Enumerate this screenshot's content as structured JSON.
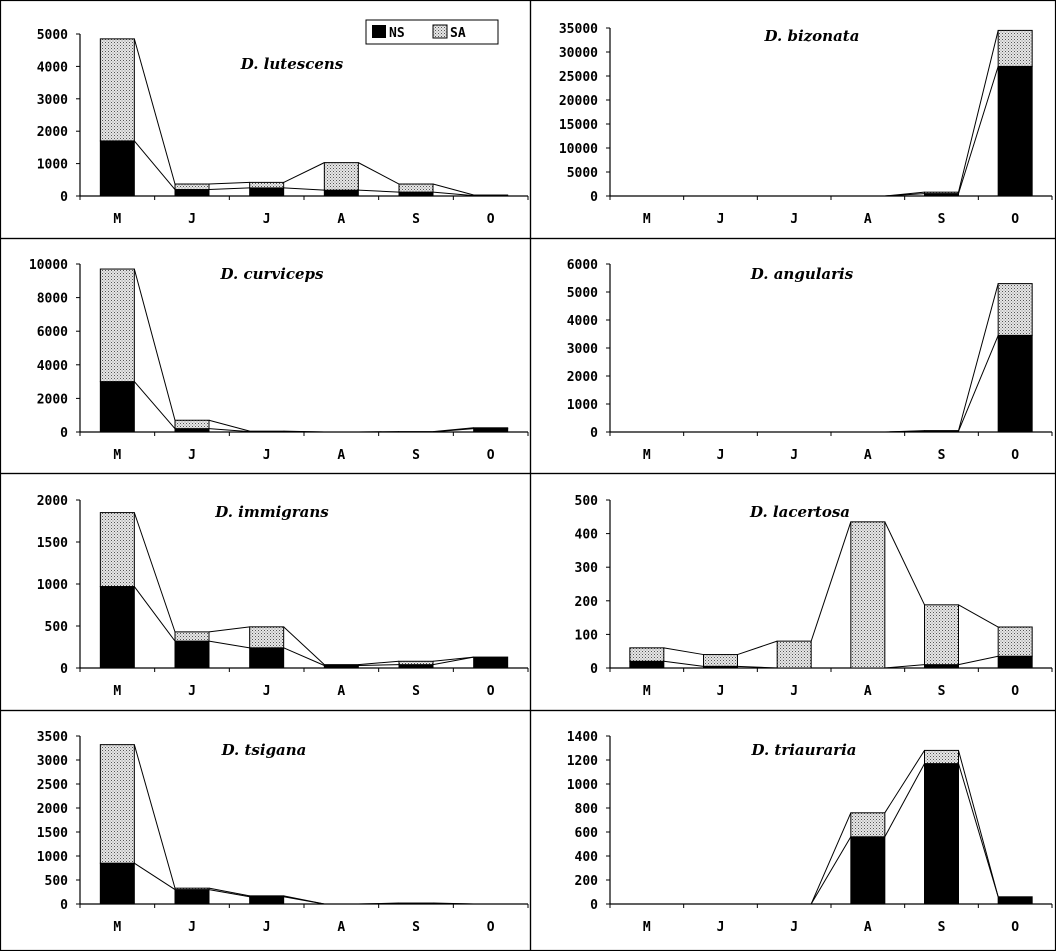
{
  "legend": {
    "items": [
      {
        "label": "NS",
        "color": "#000000"
      },
      {
        "label": "SA",
        "color": "#d0d0d0"
      }
    ]
  },
  "chart_data": [
    {
      "type": "bar",
      "stacked": true,
      "title": "D. lutescens",
      "categories": [
        "M",
        "J",
        "J",
        "A",
        "S",
        "O"
      ],
      "ylim": [
        0,
        5000
      ],
      "yticks": [
        0,
        1000,
        2000,
        3000,
        4000,
        5000
      ],
      "series": [
        {
          "name": "NS",
          "values": [
            1700,
            200,
            250,
            180,
            120,
            10
          ]
        },
        {
          "name": "SA",
          "values": [
            3150,
            170,
            170,
            850,
            250,
            20
          ]
        }
      ]
    },
    {
      "type": "bar",
      "stacked": true,
      "title": "D. bizonata",
      "categories": [
        "M",
        "J",
        "J",
        "A",
        "S",
        "O"
      ],
      "ylim": [
        0,
        35000
      ],
      "yticks": [
        0,
        5000,
        10000,
        15000,
        20000,
        25000,
        30000,
        35000
      ],
      "series": [
        {
          "name": "NS",
          "values": [
            0,
            0,
            0,
            0,
            500,
            27000
          ]
        },
        {
          "name": "SA",
          "values": [
            0,
            0,
            0,
            0,
            300,
            7500
          ]
        }
      ]
    },
    {
      "type": "bar",
      "stacked": true,
      "title": "D. curviceps",
      "categories": [
        "M",
        "J",
        "J",
        "A",
        "S",
        "O"
      ],
      "ylim": [
        0,
        10000
      ],
      "yticks": [
        0,
        2000,
        4000,
        6000,
        8000,
        10000
      ],
      "series": [
        {
          "name": "NS",
          "values": [
            3000,
            200,
            20,
            0,
            10,
            200
          ]
        },
        {
          "name": "SA",
          "values": [
            6700,
            500,
            30,
            0,
            10,
            50
          ]
        }
      ]
    },
    {
      "type": "bar",
      "stacked": true,
      "title": "D. angularis",
      "categories": [
        "M",
        "J",
        "J",
        "A",
        "S",
        "O"
      ],
      "ylim": [
        0,
        6000
      ],
      "yticks": [
        0,
        1000,
        2000,
        3000,
        4000,
        5000,
        6000
      ],
      "series": [
        {
          "name": "NS",
          "values": [
            0,
            0,
            0,
            0,
            30,
            3450
          ]
        },
        {
          "name": "SA",
          "values": [
            0,
            0,
            0,
            0,
            20,
            1850
          ]
        }
      ]
    },
    {
      "type": "bar",
      "stacked": true,
      "title": "D. immigrans",
      "categories": [
        "M",
        "J",
        "J",
        "A",
        "S",
        "O"
      ],
      "ylim": [
        0,
        2000
      ],
      "yticks": [
        0,
        500,
        1000,
        1500,
        2000
      ],
      "series": [
        {
          "name": "NS",
          "values": [
            970,
            320,
            240,
            30,
            40,
            130
          ]
        },
        {
          "name": "SA",
          "values": [
            880,
            110,
            250,
            10,
            40,
            0
          ]
        }
      ]
    },
    {
      "type": "bar",
      "stacked": true,
      "title": "D. lacertosa",
      "categories": [
        "M",
        "J",
        "J",
        "A",
        "S",
        "O"
      ],
      "ylim": [
        0,
        500
      ],
      "yticks": [
        0,
        100,
        200,
        300,
        400,
        500
      ],
      "series": [
        {
          "name": "NS",
          "values": [
            20,
            5,
            0,
            0,
            10,
            35
          ]
        },
        {
          "name": "SA",
          "values": [
            40,
            35,
            80,
            435,
            178,
            87
          ]
        }
      ]
    },
    {
      "type": "bar",
      "stacked": true,
      "title": "D. tsigana",
      "categories": [
        "M",
        "J",
        "J",
        "A",
        "S",
        "O"
      ],
      "ylim": [
        0,
        3500
      ],
      "yticks": [
        0,
        500,
        1000,
        1500,
        2000,
        2500,
        3000,
        3500
      ],
      "series": [
        {
          "name": "NS",
          "values": [
            850,
            300,
            150,
            0,
            10,
            0
          ]
        },
        {
          "name": "SA",
          "values": [
            2470,
            30,
            20,
            0,
            10,
            0
          ]
        }
      ]
    },
    {
      "type": "bar",
      "stacked": true,
      "title": "D. triauraria",
      "categories": [
        "M",
        "J",
        "J",
        "A",
        "S",
        "O"
      ],
      "ylim": [
        0,
        1400
      ],
      "yticks": [
        0,
        200,
        400,
        600,
        800,
        1000,
        1200,
        1400
      ],
      "series": [
        {
          "name": "NS",
          "values": [
            0,
            0,
            0,
            560,
            1170,
            60
          ]
        },
        {
          "name": "SA",
          "values": [
            0,
            0,
            0,
            200,
            110,
            0
          ]
        }
      ]
    }
  ]
}
